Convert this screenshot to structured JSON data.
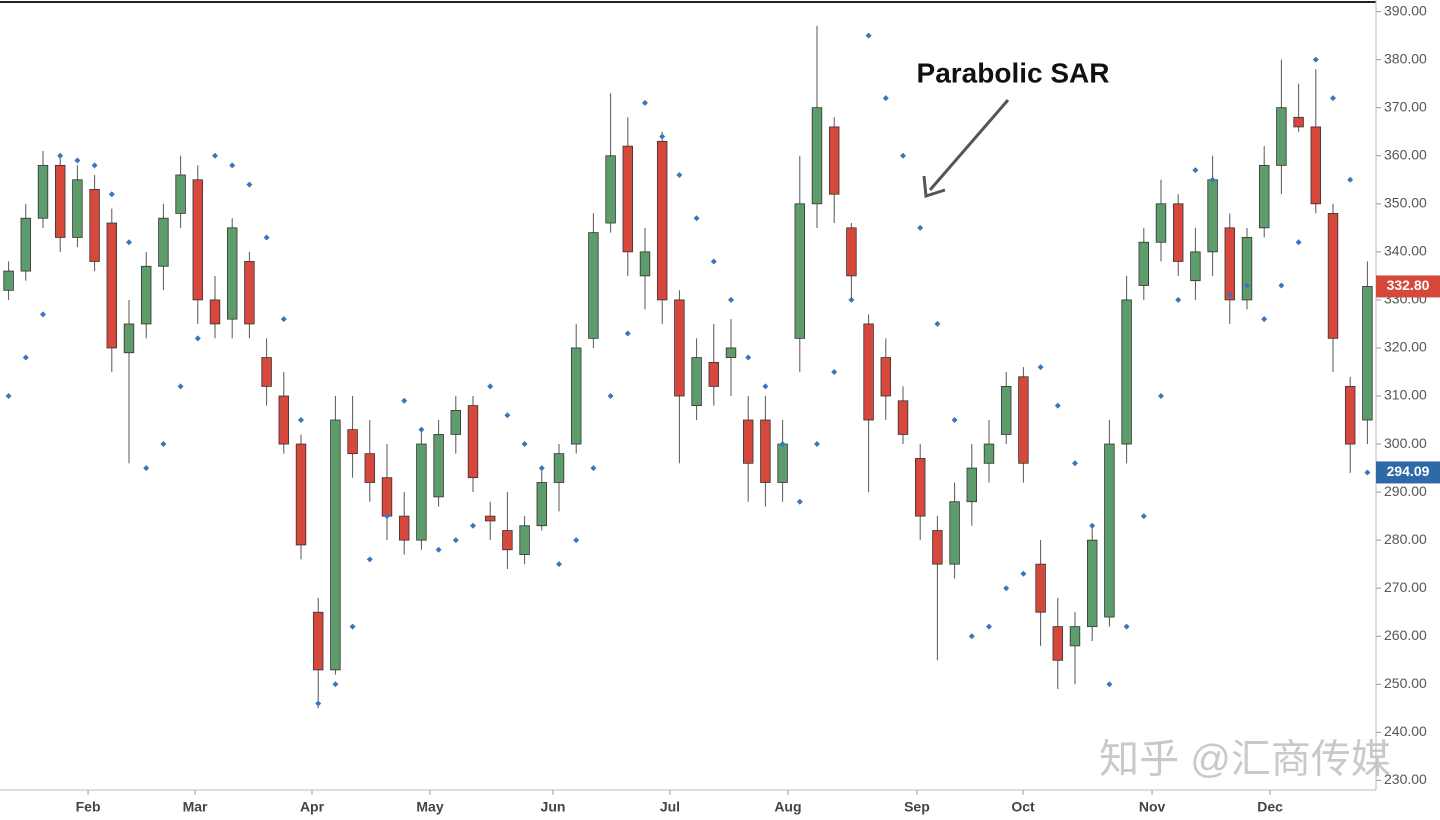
{
  "chart_data": {
    "type": "candlestick",
    "annotation": "Parabolic SAR",
    "watermark": "知乎 @汇商传媒",
    "xlim": [
      0,
      80
    ],
    "xticks": [
      {
        "value": 5.12,
        "label": "Feb"
      },
      {
        "value": 11.34,
        "label": "Mar"
      },
      {
        "value": 18.14,
        "label": "Apr"
      },
      {
        "value": 25.0,
        "label": "May"
      },
      {
        "value": 32.15,
        "label": "Jun"
      },
      {
        "value": 38.95,
        "label": "Jul"
      },
      {
        "value": 45.81,
        "label": "Aug"
      },
      {
        "value": 53.31,
        "label": "Sep"
      },
      {
        "value": 59.48,
        "label": "Oct"
      },
      {
        "value": 66.98,
        "label": "Nov"
      },
      {
        "value": 73.84,
        "label": "Dec"
      }
    ],
    "ylim": [
      228,
      392
    ],
    "yticks": [
      {
        "value": 230,
        "label": "230.00"
      },
      {
        "value": 240,
        "label": "240.00"
      },
      {
        "value": 250,
        "label": "250.00"
      },
      {
        "value": 260,
        "label": "260.00"
      },
      {
        "value": 270,
        "label": "270.00"
      },
      {
        "value": 280,
        "label": "280.00"
      },
      {
        "value": 290,
        "label": "290.00"
      },
      {
        "value": 300,
        "label": "300.00"
      },
      {
        "value": 310,
        "label": "310.00"
      },
      {
        "value": 320,
        "label": "320.00"
      },
      {
        "value": 330,
        "label": "330.00"
      },
      {
        "value": 340,
        "label": "340.00"
      },
      {
        "value": 350,
        "label": "350.00"
      },
      {
        "value": 360,
        "label": "360.00"
      },
      {
        "value": 370,
        "label": "370.00"
      },
      {
        "value": 380,
        "label": "380.00"
      },
      {
        "value": 390,
        "label": "390.00"
      }
    ],
    "up_color": "#5e9c6b",
    "down_color": "#d6483c",
    "sar_color": "#3a76bd",
    "open": [
      332,
      336,
      347,
      358,
      343,
      353,
      346,
      319,
      325,
      337,
      348,
      355,
      330,
      326,
      338,
      318,
      310,
      300,
      265,
      253,
      303,
      298,
      293,
      285,
      280,
      289,
      302,
      308,
      285,
      282,
      277,
      283,
      292,
      300,
      322,
      346,
      362,
      335,
      363,
      330,
      308,
      317,
      318,
      305,
      305,
      292,
      322,
      350,
      366,
      345,
      325,
      318,
      309,
      297,
      282,
      275,
      288,
      296,
      302,
      314,
      275,
      262,
      258,
      262,
      264,
      300,
      333,
      342,
      350,
      334,
      340,
      345,
      330,
      345,
      358,
      368,
      366,
      348,
      312,
      305
    ],
    "high": [
      338,
      350,
      361,
      360,
      358,
      356,
      349,
      330,
      340,
      350,
      360,
      358,
      335,
      347,
      340,
      322,
      315,
      302,
      268,
      310,
      310,
      305,
      300,
      290,
      303,
      305,
      310,
      310,
      288,
      290,
      285,
      295,
      300,
      325,
      348,
      373,
      368,
      345,
      365,
      332,
      322,
      325,
      326,
      310,
      310,
      305,
      360,
      387,
      368,
      346,
      327,
      322,
      312,
      300,
      285,
      292,
      300,
      305,
      315,
      316,
      280,
      268,
      265,
      283,
      305,
      335,
      345,
      355,
      352,
      345,
      360,
      348,
      345,
      362,
      380,
      375,
      378,
      350,
      314,
      338
    ],
    "low": [
      330,
      334,
      345,
      340,
      341,
      336,
      315,
      296,
      322,
      332,
      345,
      325,
      322,
      322,
      322,
      308,
      298,
      276,
      245,
      252,
      293,
      288,
      280,
      277,
      278,
      287,
      298,
      290,
      280,
      274,
      275,
      282,
      286,
      298,
      320,
      344,
      335,
      328,
      325,
      296,
      305,
      308,
      310,
      288,
      287,
      288,
      315,
      345,
      346,
      330,
      290,
      305,
      300,
      280,
      255,
      272,
      283,
      292,
      300,
      292,
      258,
      249,
      250,
      259,
      262,
      296,
      330,
      338,
      335,
      330,
      335,
      325,
      328,
      343,
      352,
      365,
      348,
      315,
      294,
      300
    ],
    "close": [
      336,
      347,
      358,
      343,
      355,
      338,
      320,
      325,
      337,
      347,
      356,
      330,
      325,
      345,
      325,
      312,
      300,
      279,
      253,
      305,
      298,
      292,
      285,
      280,
      300,
      302,
      307,
      293,
      284,
      278,
      283,
      292,
      298,
      320,
      344,
      360,
      340,
      340,
      330,
      310,
      318,
      312,
      320,
      296,
      292,
      300,
      350,
      370,
      352,
      335,
      305,
      310,
      302,
      285,
      275,
      288,
      295,
      300,
      312,
      296,
      265,
      255,
      262,
      280,
      300,
      330,
      342,
      350,
      338,
      340,
      355,
      330,
      343,
      358,
      370,
      366,
      350,
      322,
      300,
      332.8
    ],
    "sar": [
      310,
      318,
      327,
      360,
      359,
      358,
      352,
      342,
      295,
      300,
      312,
      322,
      360,
      358,
      354,
      343,
      326,
      305,
      246,
      250,
      262,
      276,
      285,
      309,
      303,
      278,
      280,
      283,
      312,
      306,
      300,
      295,
      275,
      280,
      295,
      310,
      323,
      371,
      364,
      356,
      347,
      338,
      330,
      318,
      312,
      300,
      288,
      300,
      315,
      330,
      385,
      372,
      360,
      345,
      325,
      305,
      260,
      262,
      270,
      273,
      316,
      308,
      296,
      283,
      250,
      262,
      285,
      310,
      330,
      357,
      355,
      331,
      333,
      326,
      333,
      342,
      380,
      372,
      355,
      294.09
    ],
    "close_label": "332.80",
    "sar_label": "294.09"
  }
}
